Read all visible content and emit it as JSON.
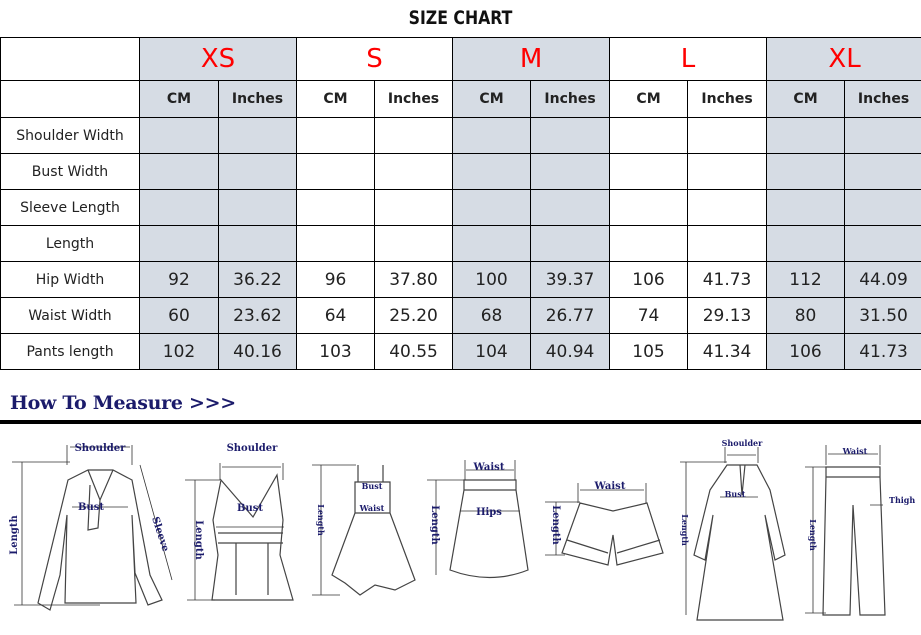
{
  "title": "SIZE CHART",
  "sizes": [
    "XS",
    "S",
    "M",
    "L",
    "XL"
  ],
  "units": [
    "CM",
    "Inches"
  ],
  "fill_color": "#d6dce4",
  "size_color": "#ff0000",
  "rows": [
    {
      "label": "Shoulder Width",
      "values": [
        "",
        "",
        "",
        "",
        "",
        "",
        "",
        "",
        "",
        ""
      ]
    },
    {
      "label": "Bust Width",
      "values": [
        "",
        "",
        "",
        "",
        "",
        "",
        "",
        "",
        "",
        ""
      ]
    },
    {
      "label": "Sleeve Length",
      "values": [
        "",
        "",
        "",
        "",
        "",
        "",
        "",
        "",
        "",
        ""
      ]
    },
    {
      "label": "Length",
      "values": [
        "",
        "",
        "",
        "",
        "",
        "",
        "",
        "",
        "",
        ""
      ]
    },
    {
      "label": "Hip Width",
      "values": [
        "92",
        "36.22",
        "96",
        "37.80",
        "100",
        "39.37",
        "106",
        "41.73",
        "112",
        "44.09"
      ]
    },
    {
      "label": "Waist Width",
      "values": [
        "60",
        "23.62",
        "64",
        "25.20",
        "68",
        "26.77",
        "74",
        "29.13",
        "80",
        "31.50"
      ]
    },
    {
      "label": "Pants length",
      "values": [
        "102",
        "40.16",
        "103",
        "40.55",
        "104",
        "40.94",
        "105",
        "41.34",
        "106",
        "41.73"
      ]
    }
  ],
  "how_to_measure": {
    "heading": "How To Measure >>>",
    "labels": {
      "shoulder": "Shoulder",
      "bust": "Bust",
      "sleeve": "Sleeve",
      "length": "Length",
      "waist": "Waist",
      "hips": "Hips",
      "thigh": "Thigh"
    }
  }
}
